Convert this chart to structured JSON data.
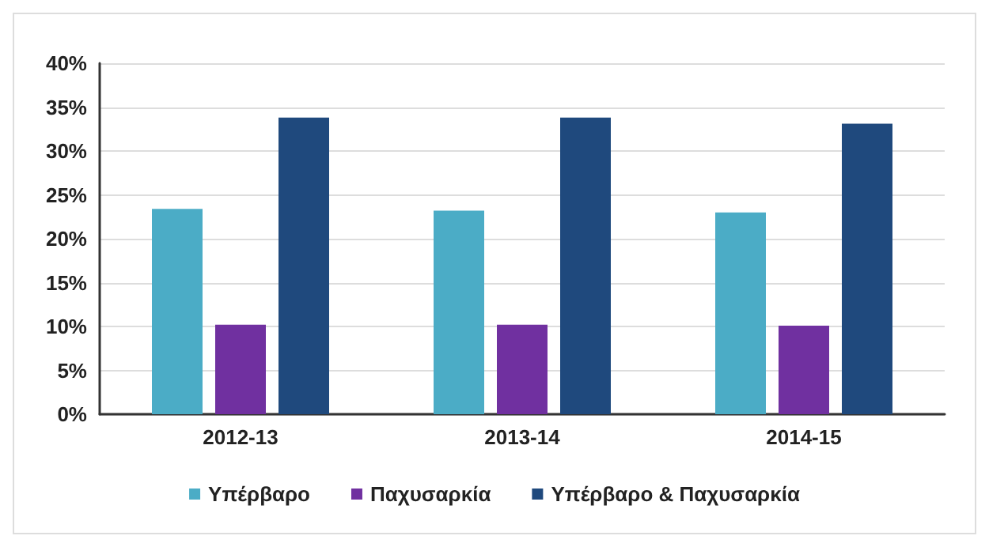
{
  "chart_data": {
    "type": "bar",
    "categories": [
      "2012-13",
      "2013-14",
      "2014-15"
    ],
    "series": [
      {
        "name": "Υπέρβαρο",
        "color": "#4bacc6",
        "values": [
          23.4,
          23.2,
          23.0
        ]
      },
      {
        "name": "Παχυσαρκία",
        "color": "#7030a0",
        "values": [
          10.2,
          10.2,
          10.1
        ]
      },
      {
        "name": "Υπέρβαρο & Παχυσαρκία",
        "color": "#1f497d",
        "values": [
          33.8,
          33.8,
          33.1
        ]
      }
    ],
    "ylim": [
      0,
      40
    ],
    "yticks": [
      {
        "value": 0,
        "label": "0%"
      },
      {
        "value": 5,
        "label": "5%"
      },
      {
        "value": 10,
        "label": "10%"
      },
      {
        "value": 15,
        "label": "15%"
      },
      {
        "value": 20,
        "label": "20%"
      },
      {
        "value": 25,
        "label": "25%"
      },
      {
        "value": 30,
        "label": "30%"
      },
      {
        "value": 35,
        "label": "35%"
      },
      {
        "value": 40,
        "label": "40%"
      }
    ],
    "grid": "y",
    "legend": "bottom"
  }
}
